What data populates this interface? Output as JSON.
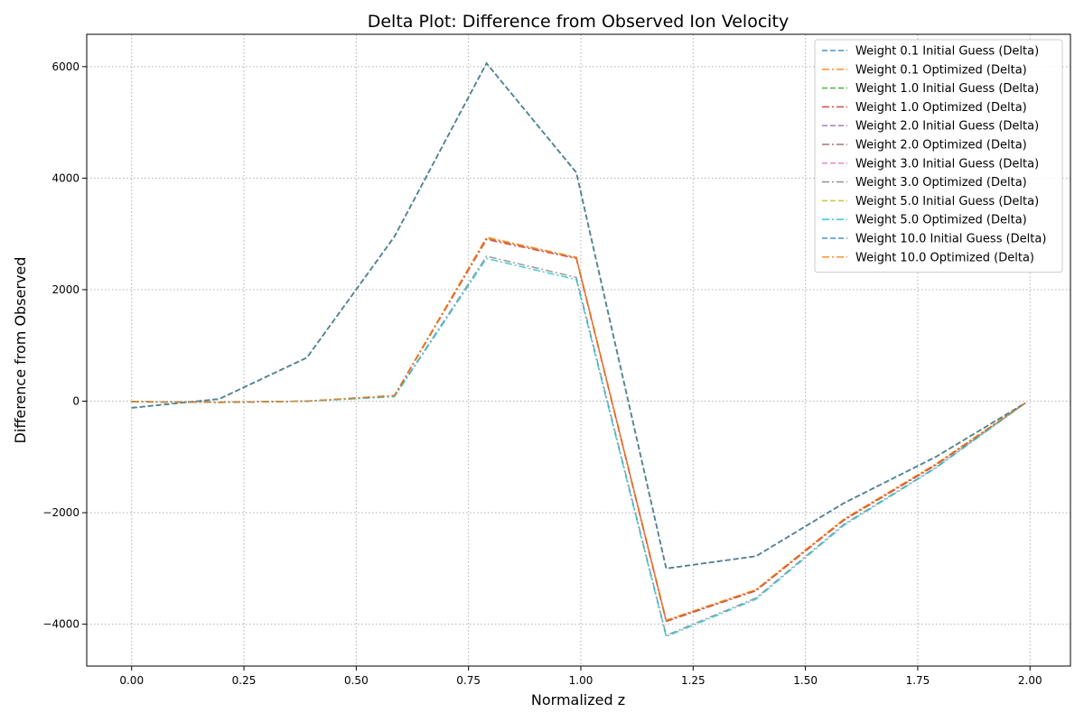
{
  "chart_data": {
    "type": "line",
    "title": "Delta Plot: Difference from Observed Ion Velocity",
    "xlabel": "Normalized z",
    "ylabel": "Difference from Observed",
    "xlim": [
      -0.1,
      2.09
    ],
    "ylim": [
      -4750,
      6580
    ],
    "xticks": [
      0.0,
      0.25,
      0.5,
      0.75,
      1.0,
      1.25,
      1.5,
      1.75,
      2.0
    ],
    "xtick_labels": [
      "0.00",
      "0.25",
      "0.50",
      "0.75",
      "1.00",
      "1.25",
      "1.50",
      "1.75",
      "2.00"
    ],
    "yticks": [
      -4000,
      -2000,
      0,
      2000,
      4000,
      6000
    ],
    "ytick_labels": [
      "−4000",
      "−2000",
      "0",
      "2000",
      "4000",
      "6000"
    ],
    "grid": true,
    "grid_style": "dotted",
    "legend_position": "top-right",
    "x": [
      0.0,
      0.195,
      0.39,
      0.585,
      0.79,
      0.99,
      1.19,
      1.39,
      1.585,
      1.79,
      1.99
    ],
    "series": [
      {
        "name": "Weight 0.1 Initial Guess (Delta)",
        "color": "#1f77b4",
        "dash": "dashed",
        "values": [
          -120,
          40,
          780,
          2950,
          6060,
          4100,
          -3000,
          -2780,
          -1830,
          -1000,
          -30
        ]
      },
      {
        "name": "Weight 0.1 Optimized (Delta)",
        "color": "#ff7f0e",
        "dash": "dashdot",
        "values": [
          -10,
          -20,
          0,
          100,
          2940,
          2580,
          -3930,
          -3380,
          -2120,
          -1130,
          -30
        ]
      },
      {
        "name": "Weight 1.0 Initial Guess (Delta)",
        "color": "#2ca02c",
        "dash": "dashed",
        "values": [
          -120,
          40,
          780,
          2950,
          6060,
          4100,
          -3000,
          -2780,
          -1830,
          -1000,
          -30
        ]
      },
      {
        "name": "Weight 1.0 Optimized (Delta)",
        "color": "#d62728",
        "dash": "dashdot",
        "values": [
          -10,
          -20,
          0,
          100,
          2900,
          2560,
          -3950,
          -3400,
          -2140,
          -1150,
          -30
        ]
      },
      {
        "name": "Weight 2.0 Initial Guess (Delta)",
        "color": "#9467bd",
        "dash": "dashed",
        "values": [
          -120,
          40,
          780,
          2950,
          6060,
          4100,
          -3000,
          -2780,
          -1830,
          -1000,
          -30
        ]
      },
      {
        "name": "Weight 2.0 Optimized (Delta)",
        "color": "#8c564b",
        "dash": "dashdot",
        "values": [
          -10,
          -20,
          0,
          100,
          2920,
          2570,
          -3940,
          -3390,
          -2130,
          -1140,
          -30
        ]
      },
      {
        "name": "Weight 3.0 Initial Guess (Delta)",
        "color": "#e377c2",
        "dash": "dashed",
        "values": [
          -120,
          40,
          780,
          2950,
          6060,
          4100,
          -3000,
          -2780,
          -1830,
          -1000,
          -30
        ]
      },
      {
        "name": "Weight 3.0 Optimized (Delta)",
        "color": "#7f7f7f",
        "dash": "dashdot",
        "values": [
          -10,
          -20,
          0,
          90,
          2600,
          2220,
          -4200,
          -3530,
          -2210,
          -1190,
          -30
        ]
      },
      {
        "name": "Weight 5.0 Initial Guess (Delta)",
        "color": "#bcbd22",
        "dash": "dashed",
        "values": [
          -120,
          40,
          780,
          2950,
          6060,
          4100,
          -3000,
          -2780,
          -1830,
          -1000,
          -30
        ]
      },
      {
        "name": "Weight 5.0 Optimized (Delta)",
        "color": "#17becf",
        "dash": "dashdot",
        "values": [
          -10,
          -20,
          0,
          80,
          2560,
          2180,
          -4220,
          -3550,
          -2230,
          -1200,
          -30
        ]
      },
      {
        "name": "Weight 10.0 Initial Guess (Delta)",
        "color": "#1f77b4",
        "dash": "dashed",
        "values": [
          -120,
          40,
          780,
          2950,
          6060,
          4100,
          -3000,
          -2780,
          -1830,
          -1000,
          -30
        ]
      },
      {
        "name": "Weight 10.0 Optimized (Delta)",
        "color": "#ff7f0e",
        "dash": "dashdot",
        "values": [
          -10,
          -20,
          0,
          100,
          2930,
          2570,
          -3930,
          -3380,
          -2120,
          -1130,
          -30
        ]
      }
    ]
  }
}
